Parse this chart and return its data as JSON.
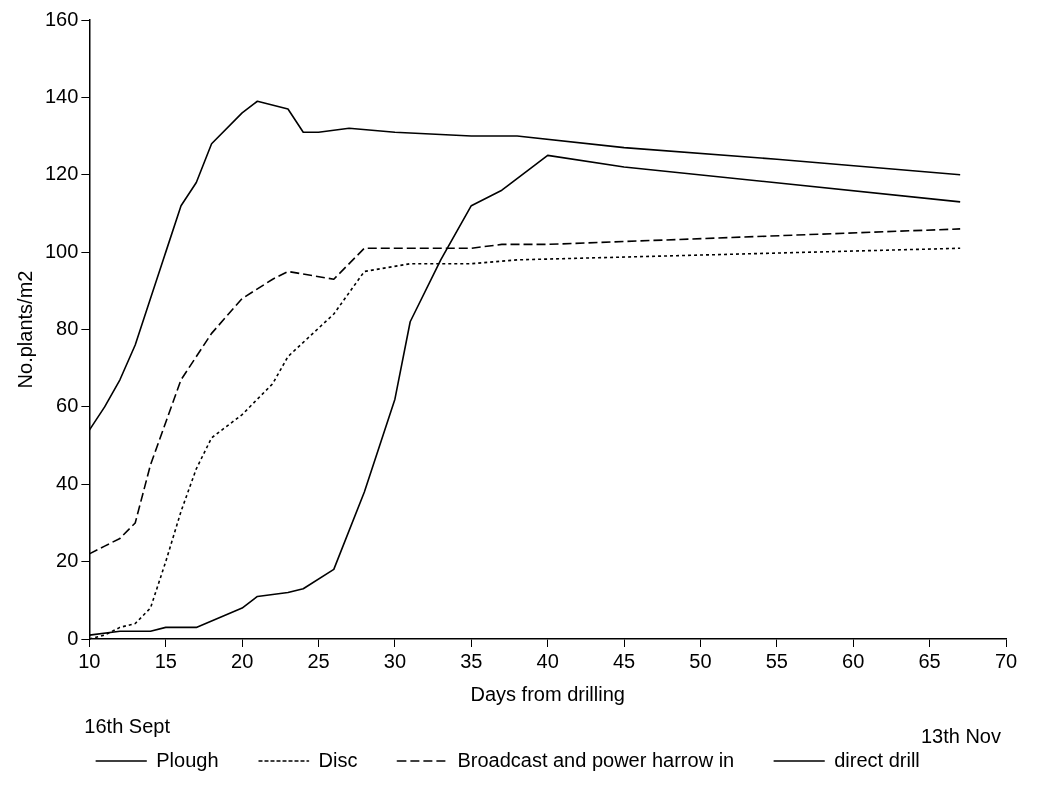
{
  "chart_data": {
    "type": "line",
    "xlabel": "Days from drilling",
    "ylabel": "No.plants/m2",
    "annotations": [
      "16th Sept",
      "13th Nov"
    ],
    "xlim": [
      10,
      70
    ],
    "xticks": [
      10,
      15,
      20,
      25,
      30,
      35,
      40,
      45,
      50,
      55,
      60,
      65,
      70
    ],
    "ylim": [
      0,
      160
    ],
    "yticks": [
      0,
      20,
      40,
      60,
      80,
      100,
      120,
      140,
      160
    ],
    "grid": false,
    "legend": "bottom",
    "marker": "none",
    "series": [
      {
        "name": "Plough",
        "color": "#000000",
        "line_style": "solid",
        "x": [
          10,
          12,
          14,
          15,
          17,
          20,
          21,
          23,
          24,
          26,
          28,
          30,
          31,
          33,
          35,
          37,
          40,
          45,
          67
        ],
        "values": [
          1,
          2,
          2,
          3,
          3,
          8,
          11,
          12,
          13,
          18,
          38,
          62,
          82,
          98,
          112,
          116,
          125,
          122,
          113
        ]
      },
      {
        "name": "Disc",
        "color": "#000000",
        "line_style": "dotted",
        "x": [
          10,
          11,
          12,
          13,
          14,
          15,
          16,
          17,
          18,
          20,
          22,
          23,
          26,
          28,
          31,
          35,
          38,
          67
        ],
        "values": [
          0,
          1,
          3,
          4,
          8,
          20,
          33,
          44,
          52,
          58,
          66,
          73,
          84,
          95,
          97,
          97,
          98,
          101
        ]
      },
      {
        "name": "Broadcast and power harrow in",
        "color": "#000000",
        "line_style": "dashed",
        "x": [
          10,
          11,
          12,
          13,
          14,
          16,
          18,
          20,
          22,
          23,
          26,
          28,
          35,
          37,
          40,
          67
        ],
        "values": [
          22,
          24,
          26,
          30,
          45,
          67,
          79,
          88,
          93,
          95,
          93,
          101,
          101,
          102,
          102,
          106
        ]
      },
      {
        "name": "direct drill",
        "color": "#000000",
        "line_style": "solid",
        "x": [
          10,
          11,
          12,
          13,
          14,
          15,
          16,
          17,
          18,
          20,
          21,
          23,
          24,
          25,
          27,
          30,
          35,
          38,
          45,
          55,
          67
        ],
        "values": [
          54,
          60,
          67,
          76,
          88,
          100,
          112,
          118,
          128,
          136,
          139,
          137,
          131,
          131,
          132,
          131,
          130,
          130,
          127,
          124,
          120
        ]
      }
    ]
  }
}
